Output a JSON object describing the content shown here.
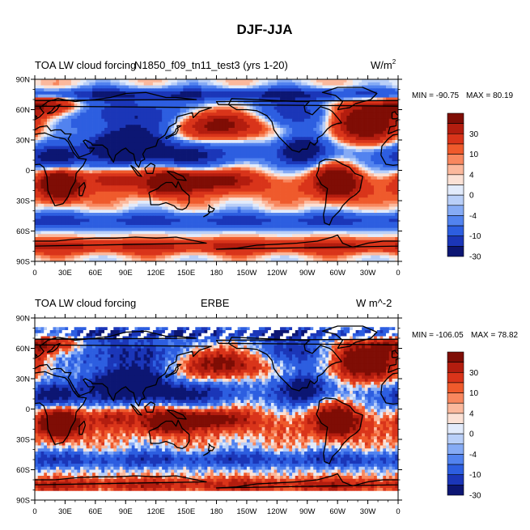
{
  "figure_title": "DJF-JJA",
  "chart_data": [
    {
      "type": "heatmap",
      "left_title": "TOA LW cloud forcing",
      "center_title": "N1850_f09_tn11_test3 (yrs 1-20)",
      "units": "W/m",
      "units_superscript": "2",
      "min_label": "MIN = -90.75",
      "max_label": "MAX =  80.19",
      "x_ticks": [
        "0",
        "30E",
        "60E",
        "90E",
        "120E",
        "150E",
        "180",
        "150W",
        "120W",
        "90W",
        "60W",
        "30W",
        "0"
      ],
      "y_ticks": [
        "90N",
        "60N",
        "30N",
        "0",
        "30S",
        "60S",
        "90S"
      ],
      "colorbar_labels": [
        "30",
        "10",
        "4",
        "0",
        "-4",
        "-10",
        "-30"
      ]
    },
    {
      "type": "heatmap",
      "left_title": "TOA LW cloud forcing",
      "center_title": "ERBE",
      "units": "W m^-2",
      "units_superscript": "",
      "min_label": "MIN = -106.05",
      "max_label": "MAX =  78.82",
      "x_ticks": [
        "0",
        "30E",
        "60E",
        "90E",
        "120E",
        "150E",
        "180",
        "150W",
        "120W",
        "90W",
        "60W",
        "30W",
        "0"
      ],
      "y_ticks": [
        "90N",
        "60N",
        "30N",
        "0",
        "30S",
        "60S",
        "90S"
      ],
      "colorbar_labels": [
        "30",
        "10",
        "4",
        "0",
        "-4",
        "-10",
        "-30"
      ]
    }
  ],
  "colors": {
    "palette": [
      "#0c1673",
      "#1b36b8",
      "#2d5ee0",
      "#5283ef",
      "#86abf5",
      "#b9cff8",
      "#e2ebfb",
      "#fbe1d5",
      "#fbb89c",
      "#f8875e",
      "#ef5a2c",
      "#d9341a",
      "#b31d0f",
      "#7f0d05"
    ],
    "coast": "#000000",
    "missing": "#ffffff"
  }
}
